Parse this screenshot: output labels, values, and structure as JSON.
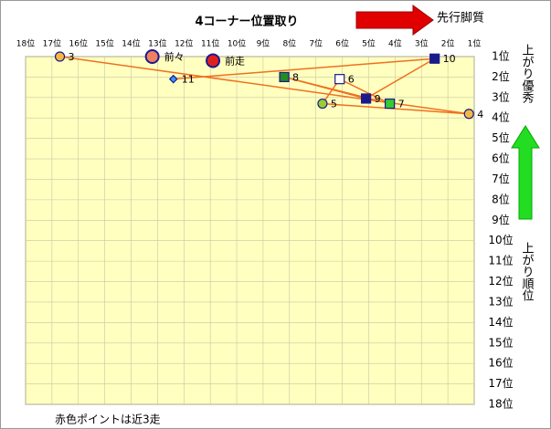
{
  "chart_data": {
    "type": "scatter",
    "title": "4コーナー位置取り",
    "x_note": "先行脚質",
    "y_note_top": "上がり優秀",
    "y_label": "上がり順位",
    "footnote": "赤色ポイントは近3走",
    "xlim": [
      18,
      1
    ],
    "ylim": [
      18,
      1
    ],
    "xticks": [
      {
        "value": 18,
        "label": "18位"
      },
      {
        "value": 17,
        "label": "17位"
      },
      {
        "value": 16,
        "label": "16位"
      },
      {
        "value": 15,
        "label": "15位"
      },
      {
        "value": 14,
        "label": "14位"
      },
      {
        "value": 13,
        "label": "13位"
      },
      {
        "value": 12,
        "label": "12位"
      },
      {
        "value": 11,
        "label": "11位"
      },
      {
        "value": 10,
        "label": "10位"
      },
      {
        "value": 9,
        "label": "9位"
      },
      {
        "value": 8,
        "label": "8位"
      },
      {
        "value": 7,
        "label": "7位"
      },
      {
        "value": 6,
        "label": "6位"
      },
      {
        "value": 5,
        "label": "5位"
      },
      {
        "value": 4,
        "label": "4位"
      },
      {
        "value": 3,
        "label": "3位"
      },
      {
        "value": 2,
        "label": "2位"
      },
      {
        "value": 1,
        "label": "1位"
      }
    ],
    "yticks": [
      {
        "value": 1,
        "label": "1位"
      },
      {
        "value": 2,
        "label": "2位"
      },
      {
        "value": 3,
        "label": "3位"
      },
      {
        "value": 4,
        "label": "4位"
      },
      {
        "value": 5,
        "label": "5位"
      },
      {
        "value": 6,
        "label": "6位"
      },
      {
        "value": 7,
        "label": "7位"
      },
      {
        "value": 8,
        "label": "8位"
      },
      {
        "value": 9,
        "label": "9位"
      },
      {
        "value": 10,
        "label": "10位"
      },
      {
        "value": 11,
        "label": "11位"
      },
      {
        "value": 12,
        "label": "12位"
      },
      {
        "value": 13,
        "label": "13位"
      },
      {
        "value": 14,
        "label": "14位"
      },
      {
        "value": 15,
        "label": "15位"
      },
      {
        "value": 16,
        "label": "16位"
      },
      {
        "value": 17,
        "label": "17位"
      },
      {
        "value": 18,
        "label": "18位"
      }
    ],
    "grid": true,
    "series": [
      {
        "line_color": "#f07020",
        "points": [
          {
            "label": "3",
            "x": 16.7,
            "y": 1.0,
            "marker": "circle",
            "color": "#f5b942"
          },
          {
            "label": "4",
            "x": 1.2,
            "y": 3.8,
            "marker": "circle",
            "color": "#f5b942"
          },
          {
            "label": "5",
            "x": 6.75,
            "y": 3.3,
            "marker": "circle",
            "color": "#9acd32"
          },
          {
            "label": "6",
            "x": 6.1,
            "y": 2.1,
            "marker": "square",
            "color": "#ffffff"
          },
          {
            "label": "7",
            "x": 4.2,
            "y": 3.3,
            "marker": "square",
            "color": "#33cc33"
          },
          {
            "label": "8",
            "x": 8.2,
            "y": 2.0,
            "marker": "square",
            "color": "#228b22"
          },
          {
            "label": "9",
            "x": 5.1,
            "y": 3.05,
            "marker": "square",
            "color": "#1a1a8c"
          },
          {
            "label": "10",
            "x": 2.5,
            "y": 1.1,
            "marker": "square",
            "color": "#1a1a8c"
          },
          {
            "label": "11",
            "x": 12.4,
            "y": 2.1,
            "marker": "diamond",
            "color": "#3399ff"
          }
        ]
      },
      {
        "points": [
          {
            "label": "前々",
            "x": 13.2,
            "y": 1.0,
            "marker": "big-circle",
            "color": "#f08060"
          },
          {
            "label": "前走",
            "x": 10.9,
            "y": 1.2,
            "marker": "big-circle",
            "color": "#e02020"
          }
        ]
      }
    ]
  }
}
